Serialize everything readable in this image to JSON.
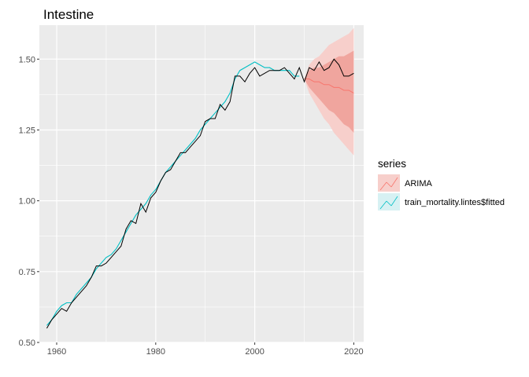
{
  "chart_data": {
    "type": "line",
    "title": "Intestine",
    "xlabel": "",
    "ylabel": "",
    "xlim": [
      1956.5,
      2022
    ],
    "ylim": [
      0.5,
      1.62
    ],
    "x_ticks": [
      1960,
      1980,
      2000,
      2020
    ],
    "x_tick_labels": [
      "1960",
      "1980",
      "2000",
      "2020"
    ],
    "y_ticks": [
      0.5,
      0.75,
      1.0,
      1.25,
      1.5
    ],
    "y_tick_labels": [
      "0.50",
      "0.75",
      "1.00",
      "1.25",
      "1.50"
    ],
    "grid": true,
    "legend": {
      "title": "series",
      "position": "right",
      "entries": [
        "ARIMA",
        "train_mortality.lintes$fitted"
      ]
    },
    "colors": {
      "panel": "#ebebeb",
      "grid": "#ffffff",
      "observed": "#000000",
      "fitted": "#00bfc4",
      "forecast": "#f8766d",
      "band80": "#f0a59e",
      "band95": "#f7cfcb"
    },
    "series": [
      {
        "x": [
          1958,
          1959,
          1960,
          1961,
          1962,
          1963,
          1964,
          1965,
          1966,
          1967,
          1968,
          1969,
          1970,
          1971,
          1972,
          1973,
          1974,
          1975,
          1976,
          1977,
          1978,
          1979,
          1980,
          1981,
          1982,
          1983,
          1984,
          1985,
          1986,
          1987,
          1988,
          1989,
          1990,
          1991,
          1992,
          1993,
          1994,
          1995,
          1996,
          1997,
          1998,
          1999,
          2000,
          2001,
          2002,
          2003,
          2004,
          2005,
          2006,
          2007,
          2008,
          2009,
          2010,
          2011,
          2012,
          2013,
          2014,
          2015,
          2016,
          2017,
          2018,
          2019,
          2020
        ],
        "values": [
          0.55,
          0.58,
          0.6,
          0.62,
          0.61,
          0.64,
          0.66,
          0.68,
          0.7,
          0.73,
          0.77,
          0.77,
          0.78,
          0.8,
          0.82,
          0.84,
          0.9,
          0.93,
          0.92,
          0.99,
          0.96,
          1.01,
          1.03,
          1.07,
          1.1,
          1.11,
          1.14,
          1.17,
          1.17,
          1.19,
          1.21,
          1.23,
          1.28,
          1.29,
          1.29,
          1.34,
          1.32,
          1.35,
          1.44,
          1.44,
          1.42,
          1.45,
          1.47,
          1.44,
          1.45,
          1.46,
          1.46,
          1.46,
          1.47,
          1.45,
          1.43,
          1.47,
          1.42,
          1.47,
          1.46,
          1.49,
          1.46,
          1.47,
          1.5,
          1.48,
          1.44,
          1.44,
          1.45
        ]
      },
      {
        "name": "train_mortality.lintes$fitted",
        "x": [
          1958,
          1959,
          1960,
          1961,
          1962,
          1963,
          1964,
          1965,
          1966,
          1967,
          1968,
          1969,
          1970,
          1971,
          1972,
          1973,
          1974,
          1975,
          1976,
          1977,
          1978,
          1979,
          1980,
          1981,
          1982,
          1983,
          1984,
          1985,
          1986,
          1987,
          1988,
          1989,
          1990,
          1991,
          1992,
          1993,
          1994,
          1995,
          1996,
          1997,
          1998,
          1999,
          2000,
          2001,
          2002,
          2003,
          2004,
          2005,
          2006,
          2007,
          2008,
          2009
        ],
        "values": [
          0.56,
          0.58,
          0.61,
          0.63,
          0.64,
          0.64,
          0.67,
          0.69,
          0.71,
          0.73,
          0.76,
          0.78,
          0.8,
          0.81,
          0.83,
          0.86,
          0.89,
          0.92,
          0.95,
          0.97,
          0.99,
          1.02,
          1.04,
          1.07,
          1.1,
          1.12,
          1.14,
          1.16,
          1.18,
          1.2,
          1.22,
          1.25,
          1.27,
          1.29,
          1.31,
          1.33,
          1.35,
          1.38,
          1.43,
          1.46,
          1.47,
          1.48,
          1.49,
          1.48,
          1.47,
          1.47,
          1.46,
          1.46,
          1.46,
          1.46,
          1.44,
          1.44
        ]
      },
      {
        "name": "ARIMA",
        "x": [
          2010,
          2011,
          2012,
          2013,
          2014,
          2015,
          2016,
          2017,
          2018,
          2019,
          2020
        ],
        "values": [
          1.43,
          1.43,
          1.42,
          1.42,
          1.41,
          1.41,
          1.4,
          1.4,
          1.39,
          1.39,
          1.38
        ],
        "lo80": [
          1.43,
          1.4,
          1.38,
          1.36,
          1.34,
          1.32,
          1.31,
          1.29,
          1.27,
          1.26,
          1.24
        ],
        "hi80": [
          1.43,
          1.46,
          1.47,
          1.47,
          1.48,
          1.49,
          1.5,
          1.51,
          1.51,
          1.52,
          1.53
        ],
        "lo95": [
          1.43,
          1.38,
          1.35,
          1.32,
          1.29,
          1.27,
          1.24,
          1.22,
          1.2,
          1.18,
          1.16
        ],
        "hi95": [
          1.43,
          1.48,
          1.5,
          1.51,
          1.53,
          1.55,
          1.56,
          1.57,
          1.58,
          1.59,
          1.61
        ]
      }
    ]
  }
}
